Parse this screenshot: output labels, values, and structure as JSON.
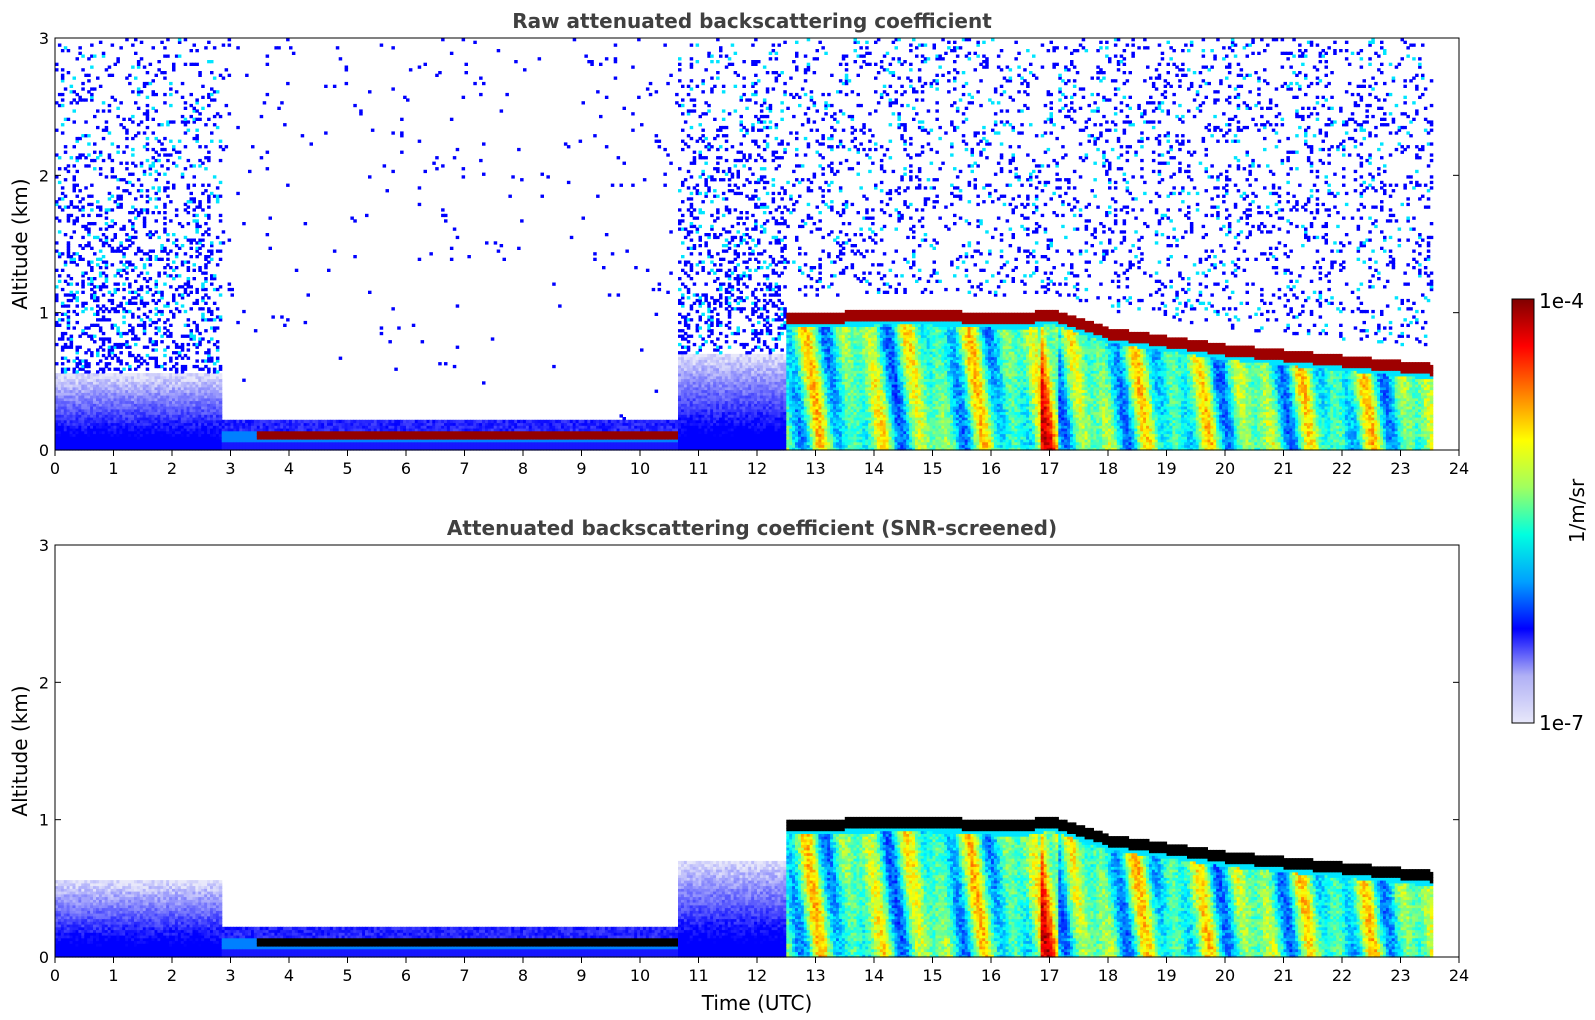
{
  "chart_data": [
    {
      "type": "heatmap",
      "title": "Raw attenuated backscattering coefficient",
      "xlabel": "",
      "ylabel": "Altitude (km)",
      "xlim": [
        0,
        24
      ],
      "ylim": [
        0,
        3
      ],
      "xticks": [
        "0",
        "1",
        "2",
        "3",
        "4",
        "5",
        "6",
        "7",
        "8",
        "9",
        "10",
        "11",
        "12",
        "13",
        "14",
        "15",
        "16",
        "17",
        "18",
        "19",
        "20",
        "21",
        "22",
        "23",
        "24"
      ],
      "yticks": [
        "0",
        "1",
        "2",
        "3"
      ],
      "data_end_time": 23.55,
      "cloud_layers": [
        {
          "name_hidden": "nocturnal",
          "start": 2.8,
          "end": 10.6,
          "base_km": [
            0.08,
            0.1
          ],
          "top_km": [
            0.12,
            0.14
          ]
        },
        {
          "name_hidden": "stratocumulus",
          "x": [
            12.5,
            13.5,
            14.5,
            15.5,
            16.5,
            17.0,
            18.0,
            19.0,
            20.0,
            21.0,
            22.0,
            23.5
          ],
          "top_km": [
            1.0,
            1.0,
            1.02,
            1.0,
            0.98,
            1.02,
            0.88,
            0.82,
            0.76,
            0.72,
            0.68,
            0.62
          ]
        }
      ],
      "noise": true
    },
    {
      "type": "heatmap",
      "title": "Attenuated backscattering coefficient (SNR-screened)",
      "xlabel": "Time (UTC)",
      "ylabel": "Altitude (km)",
      "xlim": [
        0,
        24
      ],
      "ylim": [
        0,
        3
      ],
      "xticks": [
        "0",
        "1",
        "2",
        "3",
        "4",
        "5",
        "6",
        "7",
        "8",
        "9",
        "10",
        "11",
        "12",
        "13",
        "14",
        "15",
        "16",
        "17",
        "18",
        "19",
        "20",
        "21",
        "22",
        "23",
        "24"
      ],
      "yticks": [
        "0",
        "1",
        "2",
        "3"
      ],
      "data_end_time": 23.55,
      "saturated_color": "#000000",
      "noise": false
    }
  ],
  "colorbar": {
    "label": "1/m/sr",
    "max_label": "1e-4",
    "min_label": "1e-7",
    "scale": "log",
    "colormap": "jet",
    "colors": [
      "#e8e8fa",
      "#b0b0f5",
      "#0000ff",
      "#00a0ff",
      "#00ffe0",
      "#a0ff60",
      "#ffff00",
      "#ff8000",
      "#ff0000",
      "#800000"
    ]
  }
}
